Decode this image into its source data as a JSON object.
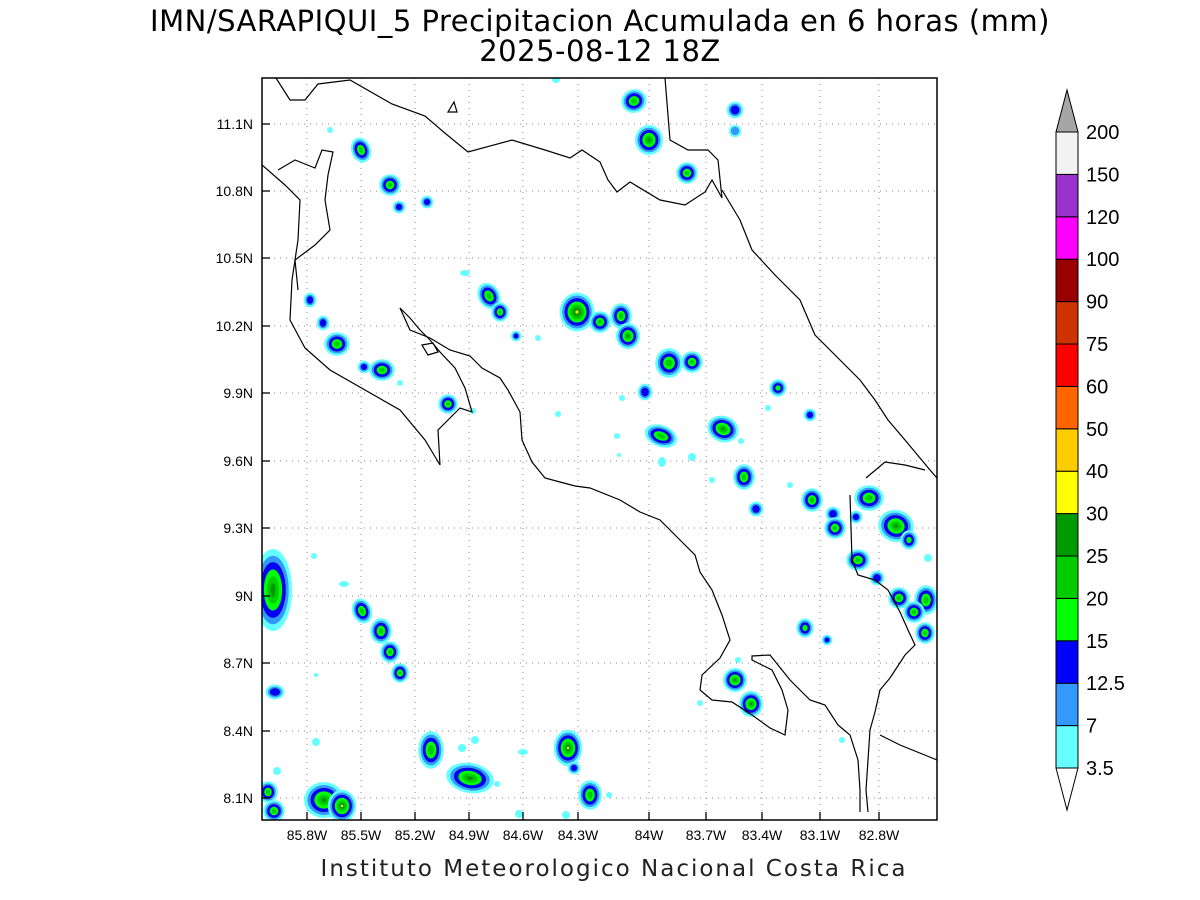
{
  "title": {
    "line1": "IMN/SARAPIQUI_5 Precipitacion Acumulada en 6 horas (mm)",
    "line2": "2025-08-12 18Z"
  },
  "footer": "Instituto Meteorologico Nacional Costa Rica",
  "axes": {
    "x_ticks": [
      "85.8W",
      "85.5W",
      "85.2W",
      "84.9W",
      "84.6W",
      "84.3W",
      "84W",
      "83.7W",
      "83.4W",
      "83.1W",
      "82.8W"
    ],
    "y_ticks": [
      "11.1N",
      "10.8N",
      "10.5N",
      "10.2N",
      "9.9N",
      "9.6N",
      "9.3N",
      "9N",
      "8.7N",
      "8.4N",
      "8.1N"
    ]
  },
  "colorbar": {
    "levels": [
      "3.5",
      "7",
      "12.5",
      "15",
      "20",
      "25",
      "30",
      "40",
      "50",
      "60",
      "75",
      "90",
      "100",
      "120",
      "150",
      "200"
    ],
    "colors": [
      "#66ffff",
      "#3399ff",
      "#0000ff",
      "#00ff00",
      "#00cc00",
      "#009900",
      "#ffff00",
      "#ffcc00",
      "#ff6600",
      "#ff0000",
      "#cc3300",
      "#990000",
      "#ff00ff",
      "#9933cc",
      "#f2f2f2",
      "#a6a6a6"
    ]
  }
}
